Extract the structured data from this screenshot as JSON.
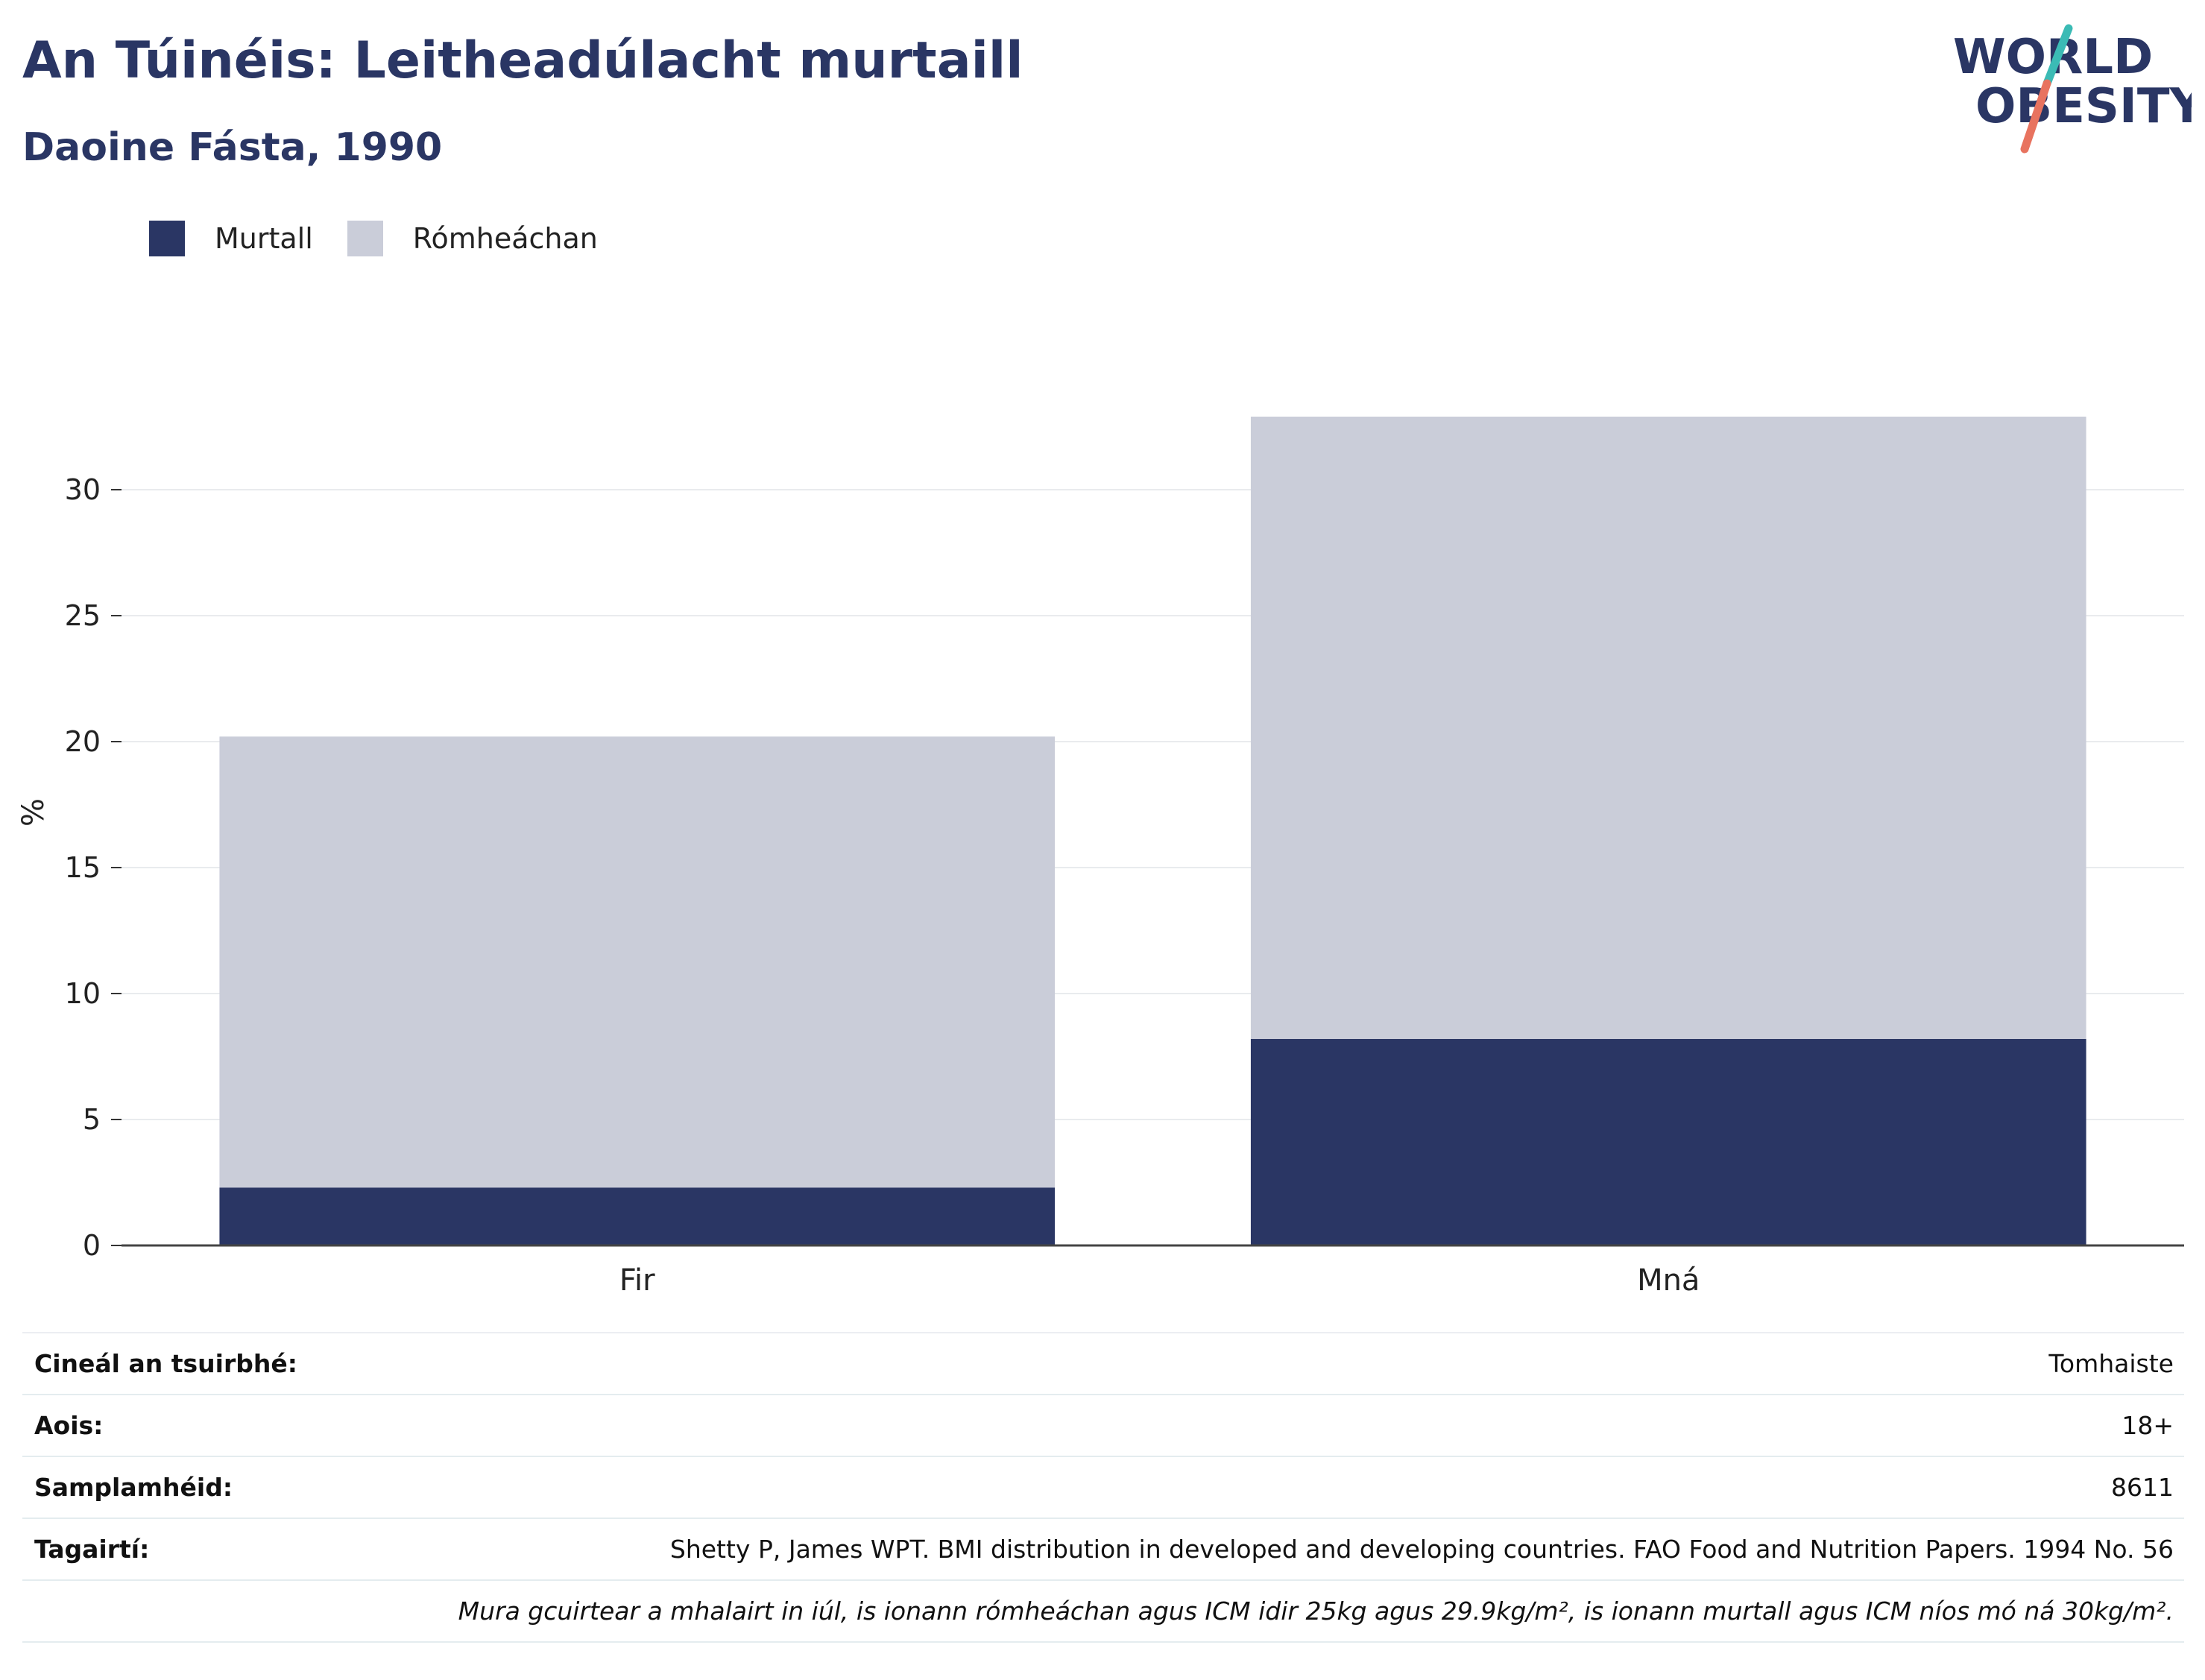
{
  "header": {
    "title": "An Túinéis: Leitheadúlacht murtaill",
    "subtitle": "Daoine Fásta, 1990"
  },
  "logo": {
    "line1": "WORLD",
    "line2": "OBESITY"
  },
  "colors": {
    "obesity": "#2a3664",
    "overweight": "#cacdd9",
    "title": "#2a3664",
    "logo_slash_top": "#3bbbb5",
    "logo_slash_bottom": "#e8735f"
  },
  "chart_data": {
    "type": "bar",
    "stacked": true,
    "categories": [
      "Fir",
      "Mná"
    ],
    "series": [
      {
        "name": "Murtall",
        "values": [
          2.3,
          8.2
        ]
      },
      {
        "name": "Rómheáchan",
        "values": [
          17.9,
          24.7
        ]
      }
    ],
    "ylabel": "%",
    "ylim": [
      0,
      33
    ],
    "yticks": [
      0,
      5,
      10,
      15,
      20,
      25,
      30
    ],
    "grid": true,
    "legend_position": "top-left"
  },
  "info": [
    {
      "key": "Cineál an tsuirbhé:",
      "value": "Tomhaiste"
    },
    {
      "key": "Aois:",
      "value": "18+"
    },
    {
      "key": "Samplamhéid:",
      "value": "8611"
    },
    {
      "key": "Tagairtí:",
      "value": "Shetty P, James WPT. BMI distribution in developed and developing countries. FAO Food and Nutrition Papers. 1994 No. 56"
    }
  ],
  "note": "Mura gcuirtear a mhalairt in iúl, is ionann rómheáchan agus ICM idir 25kg agus 29.9kg/m², is ionann murtall agus ICM níos mó ná 30kg/m²."
}
